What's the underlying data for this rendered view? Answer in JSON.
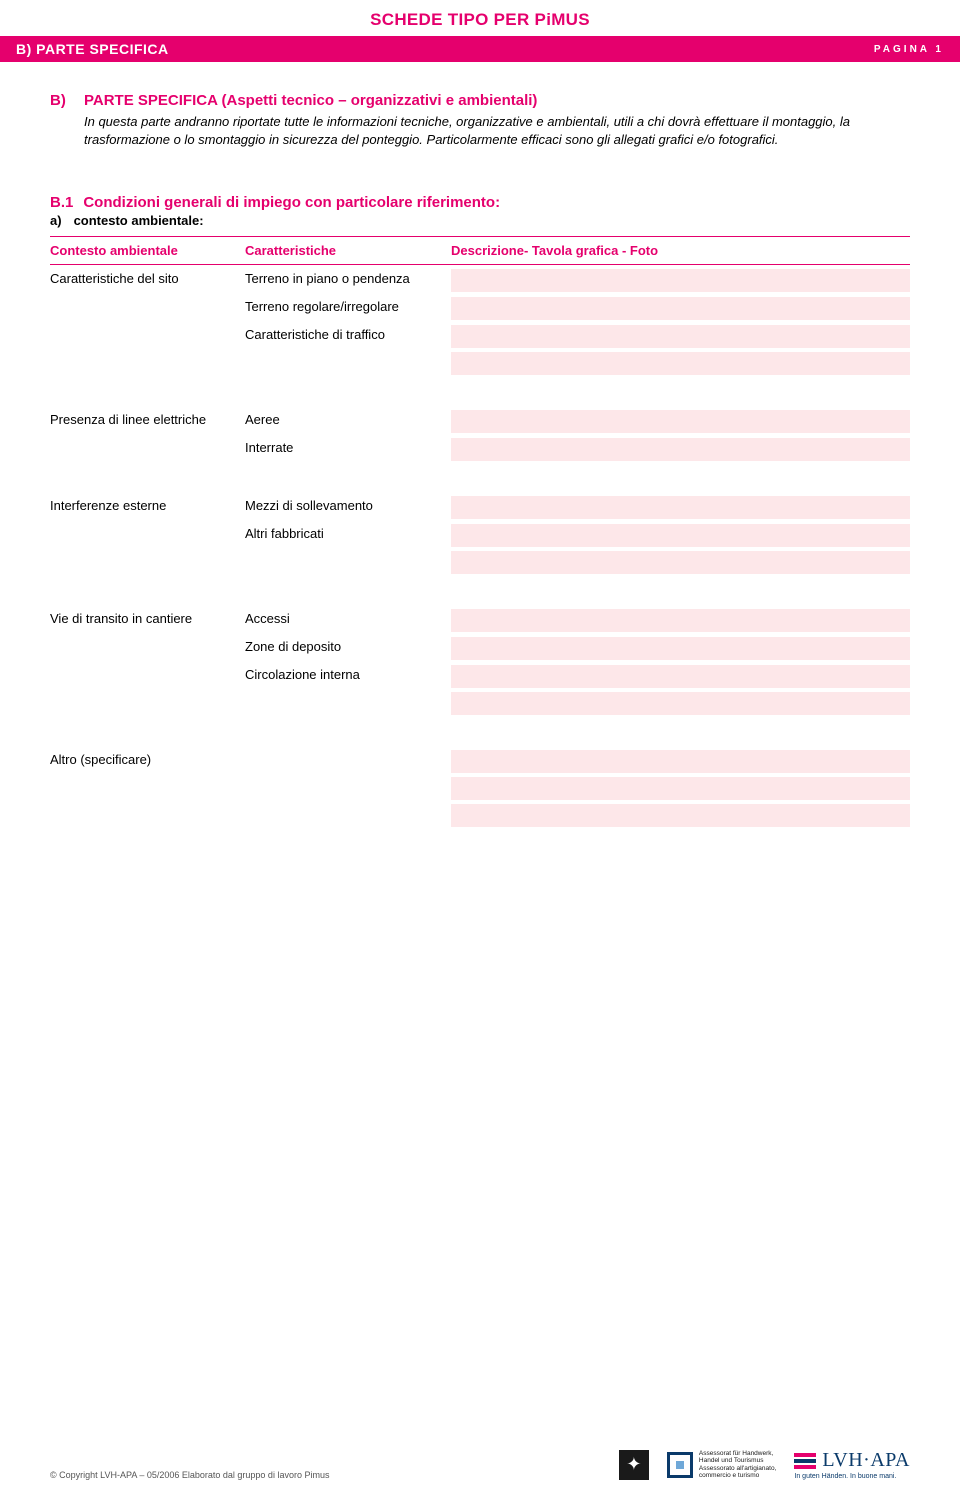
{
  "header": {
    "main_title": "SCHEDE TIPO PER PiMUS",
    "section_label": "B) PARTE SPECIFICA",
    "page_label": "PAGINA 1"
  },
  "section_b": {
    "letter": "B)",
    "heading": "PARTE SPECIFICA (Aspetti tecnico – organizzativi e ambientali)",
    "paragraph": "In questa parte andranno riportate tutte le informazioni tecniche, organizzative e ambientali, utili a chi dovrà effettuare il montaggio, la trasformazione o lo smontaggio in sicurezza del ponteggio. Particolarmente efficaci sono gli allegati grafici e/o fotografici."
  },
  "section_b1": {
    "number": "B.1",
    "title": "Condizioni generali di impiego con particolare riferimento:",
    "sub_letter": "a)",
    "sub_title": "contesto ambientale:"
  },
  "table": {
    "headers": {
      "col1": "Contesto ambientale",
      "col2": "Caratteristiche",
      "col3": "Descrizione- Tavola grafica - Foto"
    },
    "groups": [
      {
        "label": "Caratteristiche del sito",
        "rows": [
          {
            "c2": "Terreno in piano o pendenza",
            "fills": 1
          },
          {
            "c2": "Terreno regolare/irregolare",
            "fills": 1
          },
          {
            "c2": "Caratteristiche di traffico",
            "fills": 2
          }
        ]
      },
      {
        "label": "Presenza di linee elettriche",
        "rows": [
          {
            "c2": "Aeree",
            "fills": 1
          },
          {
            "c2": "Interrate",
            "fills": 1
          }
        ]
      },
      {
        "label": "Interferenze esterne",
        "rows": [
          {
            "c2": "Mezzi di sollevamento",
            "fills": 1
          },
          {
            "c2": "Altri fabbricati",
            "fills": 2
          }
        ]
      },
      {
        "label": "Vie di transito in cantiere",
        "rows": [
          {
            "c2": "Accessi",
            "fills": 1
          },
          {
            "c2": "Zone di deposito",
            "fills": 1
          },
          {
            "c2": "Circolazione interna",
            "fills": 2
          }
        ]
      },
      {
        "label": "Altro (specificare)",
        "rows": [
          {
            "c2": "",
            "fills": 3
          }
        ]
      }
    ]
  },
  "footer": {
    "copyright": "© Copyright LVH-APA – 05/2006 Elaborato dal gruppo di lavoro Pimus",
    "assessorat": "Assessorat für Handwerk,\nHandel und Tourismus\nAssessorato all'artigianato,\ncommercio e turismo",
    "logo_name": "LVH·APA",
    "logo_tag": "In guten Händen. In buone mani."
  },
  "colors": {
    "brand": "#e5006d",
    "fill_bg": "#fde7e9",
    "text": "#000000",
    "dark_blue": "#0a3a6a"
  }
}
